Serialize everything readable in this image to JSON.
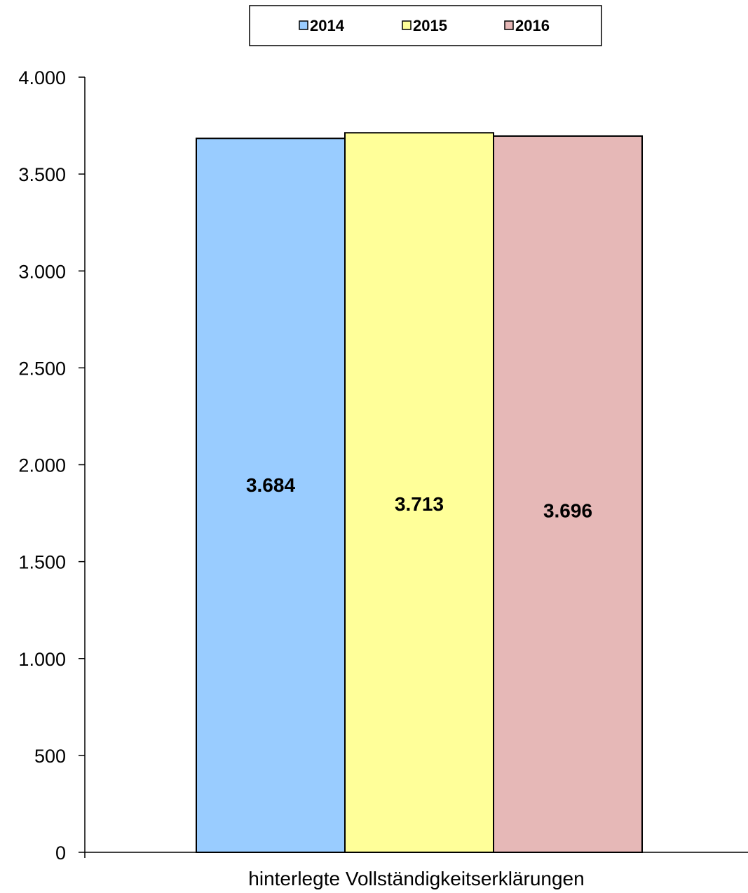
{
  "chart_data": {
    "type": "bar",
    "categories": [
      "hinterlegte Vollständigkeitserklärungen"
    ],
    "series": [
      {
        "name": "2014",
        "values": [
          3684
        ],
        "color": "#99CCFF",
        "label": "3.684"
      },
      {
        "name": "2015",
        "values": [
          3713
        ],
        "color": "#FFFF99",
        "label": "3.713"
      },
      {
        "name": "2016",
        "values": [
          3696
        ],
        "color": "#E6B8B7",
        "label": "3.696"
      }
    ],
    "ylim": [
      0,
      4000
    ],
    "yticks": [
      0,
      500,
      1000,
      1500,
      2000,
      2500,
      3000,
      3500,
      4000
    ],
    "ytick_labels": [
      "0",
      "500",
      "1.000",
      "1.500",
      "2.000",
      "2.500",
      "3.000",
      "3.500",
      "4.000"
    ],
    "title": "",
    "xlabel": "",
    "ylabel": "",
    "grid": false,
    "legend_position": "top-center"
  }
}
